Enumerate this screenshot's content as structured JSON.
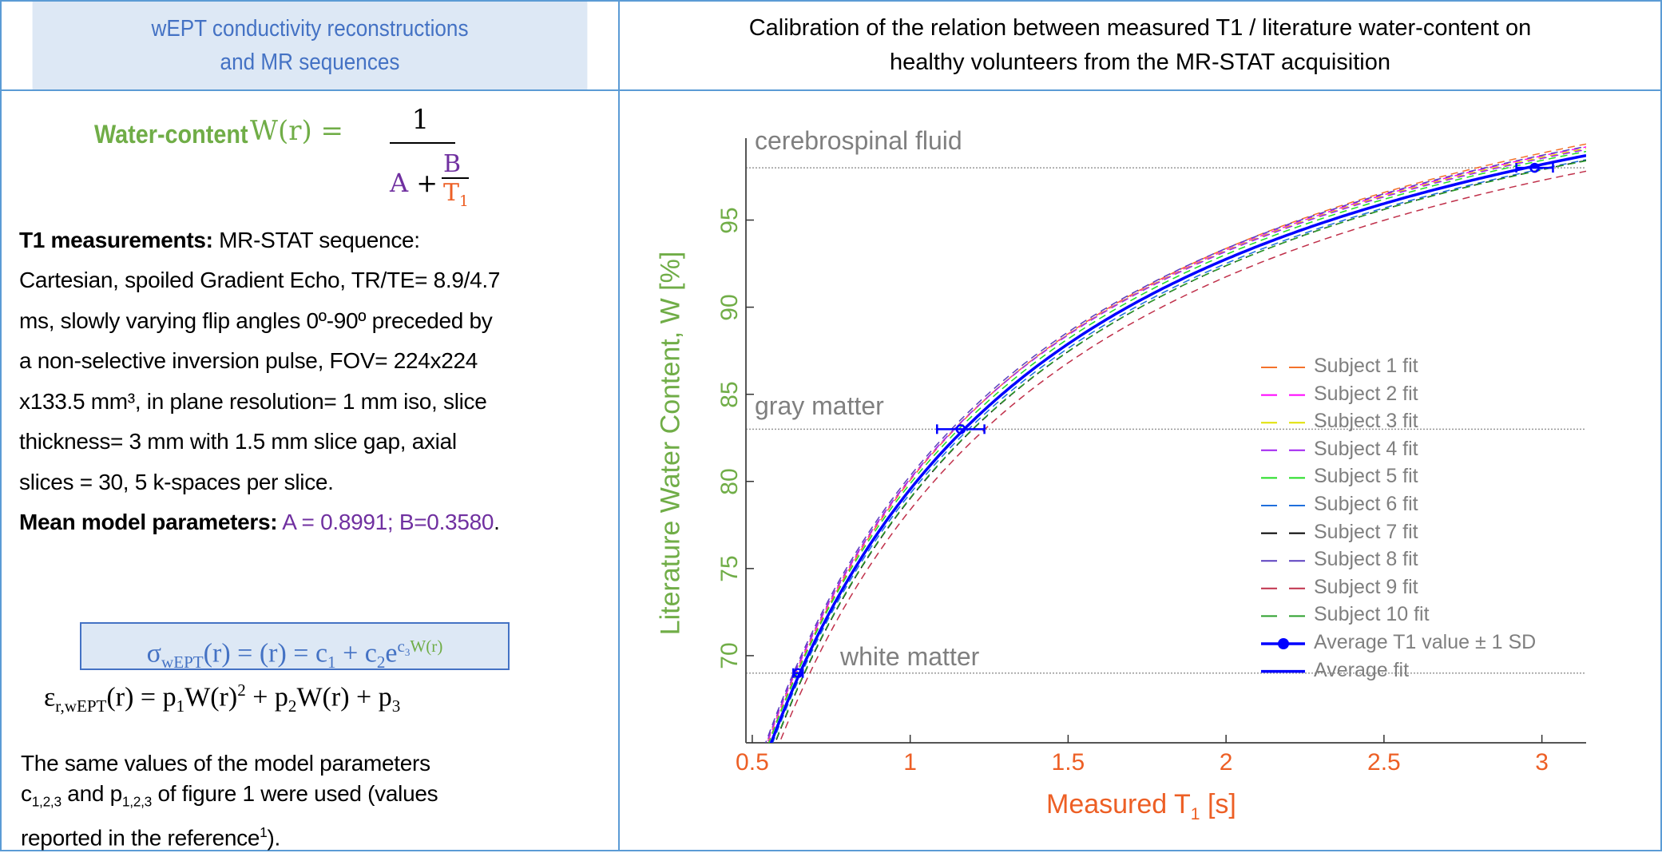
{
  "left_header": {
    "line1": "wEPT conductivity reconstructions",
    "line2": "and MR sequences"
  },
  "right_header": {
    "line1": "Calibration of the relation between measured T1 / literature water-content on",
    "line2": "healthy volunteers from the MR-STAT acquisition"
  },
  "formula_w": {
    "label": "Water-content",
    "lhs": "W(r) =",
    "numerator": "1",
    "a": "A",
    "plus": "+",
    "b": "B",
    "t": "T",
    "t_sub": "1"
  },
  "t1_section": {
    "heading": "T1 measurements:",
    "lines": [
      "MR-STAT sequence:",
      "Cartesian, spoiled Gradient Echo, TR/TE= 8.9/4.7",
      "ms, slowly varying flip angles 0º-90º  preceded by",
      "a non-selective inversion pulse, FOV= 224x224",
      "x133.5 mm³, in plane resolution= 1 mm iso, slice",
      "thickness= 3 mm with 1.5 mm slice gap, axial",
      "slices = 30, 5 k-spaces per slice."
    ]
  },
  "mean_params": {
    "heading": "Mean model parameters:",
    "values": "A = 0.8991; B=0.3580",
    "end": "."
  },
  "sigma_formula": {
    "sigma": "σ",
    "sub": "wEPT",
    "text": "(r) = (r) = c",
    "c1": "1",
    "plus": " + c",
    "c2": "2",
    "e": "e",
    "c3": "c",
    "c3sub": "3",
    "w": "W(r)"
  },
  "eps_formula": {
    "eps": "ε",
    "sub": "r,wEPT",
    "text1": "(r) = p",
    "p1": "1",
    "text2": "W(r)",
    "sq": "2",
    "text3": " + p",
    "p2": "2",
    "text4": "W(r) + p",
    "p3": "3"
  },
  "footer_text": {
    "line1": "The same values of the model parameters",
    "c": "c",
    "csub": "1,2,3",
    "and": " and p",
    "psub": "1,2,3",
    "rest": " of figure 1 were used (values",
    "line3": "reported in the reference",
    "ref": "1",
    "end": ")."
  },
  "chart_data": {
    "type": "line",
    "xlabel": "Measured T",
    "xlabel_sub": "1",
    "xlabel_unit": " [s]",
    "ylabel": "Literature Water Content, W [%]",
    "xlim": [
      0.48,
      3.14
    ],
    "ylim": [
      65,
      99.7
    ],
    "xticks": [
      "0.5",
      "1",
      "1.5",
      "2",
      "2.5",
      "3"
    ],
    "yticks": [
      "70",
      "75",
      "80",
      "85",
      "90",
      "95"
    ],
    "model": "W = 100 / (A + B / T1)",
    "reference_lines": [
      {
        "label": "cerebrospinal fluid",
        "y": 98
      },
      {
        "label": "gray matter",
        "y": 83
      },
      {
        "label": "white matter",
        "y": 69
      }
    ],
    "series": [
      {
        "name": "Subject 1 fit",
        "color": "#f4722b",
        "A": 0.893,
        "B": 0.356
      },
      {
        "name": "Subject 2 fit",
        "color": "#ff00ff",
        "A": 0.896,
        "B": 0.352
      },
      {
        "name": "Subject 3 fit",
        "color": "#e0e000",
        "A": 0.8975,
        "B": 0.35
      },
      {
        "name": "Subject 4 fit",
        "color": "#a020f0",
        "A": 0.8985,
        "B": 0.349
      },
      {
        "name": "Subject 5 fit",
        "color": "#22dd22",
        "A": 0.898,
        "B": 0.354
      },
      {
        "name": "Subject 6 fit",
        "color": "#1f6fdc",
        "A": 0.901,
        "B": 0.36
      },
      {
        "name": "Subject 7 fit",
        "color": "#000000",
        "A": 0.8995,
        "B": 0.366
      },
      {
        "name": "Subject 8 fit",
        "color": "#5a3fbf",
        "A": 0.897,
        "B": 0.348
      },
      {
        "name": "Subject 9 fit",
        "color": "#c0304a",
        "A": 0.904,
        "B": 0.372
      },
      {
        "name": "Subject 10 fit",
        "color": "#2ca02c",
        "A": 0.9,
        "B": 0.365
      }
    ],
    "average_points": {
      "name": "Average T1 value ± 1 SD",
      "color": "#0000ff",
      "points": [
        {
          "x": 0.645,
          "y": 69,
          "sd": 0.015
        },
        {
          "x": 1.16,
          "y": 83,
          "sd": 0.075
        },
        {
          "x": 2.977,
          "y": 98,
          "sd": 0.058
        }
      ]
    },
    "average_fit": {
      "name": "Average fit",
      "color": "#0000ff",
      "A": 0.8991,
      "B": 0.358
    }
  }
}
